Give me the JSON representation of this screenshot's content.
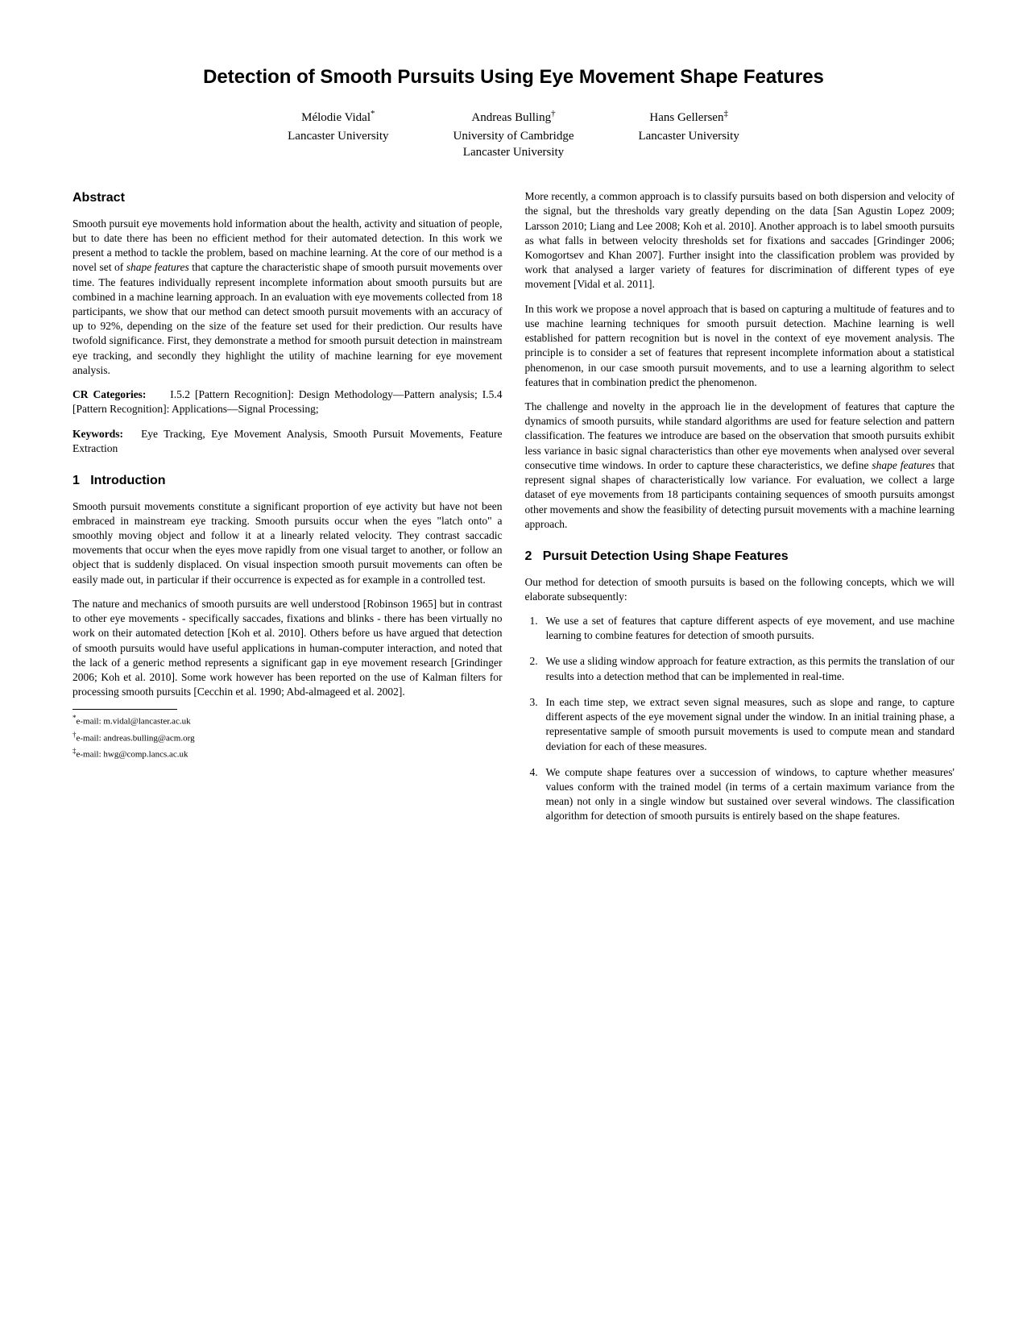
{
  "title": "Detection of Smooth Pursuits Using Eye Movement Shape Features",
  "authors": [
    {
      "name": "Mélodie Vidal",
      "marker": "*",
      "affil": "Lancaster University"
    },
    {
      "name": "Andreas Bulling",
      "marker": "†",
      "affil1": "University of Cambridge",
      "affil2": "Lancaster University"
    },
    {
      "name": "Hans Gellersen",
      "marker": "‡",
      "affil": "Lancaster University"
    }
  ],
  "abstract_heading": "Abstract",
  "abstract_p1": "Smooth pursuit eye movements hold information about the health, activity and situation of people, but to date there has been no efficient method for their automated detection. In this work we present a method to tackle the problem, based on machine learning. At the core of our method is a novel set of ",
  "abstract_p1_italic": "shape features",
  "abstract_p1_cont": " that capture the characteristic shape of smooth pursuit movements over time. The features individually represent incomplete information about smooth pursuits but are combined in a machine learning approach. In an evaluation with eye movements collected from 18 participants, we show that our method can detect smooth pursuit movements with an accuracy of up to 92%, depending on the size of the feature set used for their prediction. Our results have twofold significance. First, they demonstrate a method for smooth pursuit detection in mainstream eye tracking, and secondly they highlight the utility of machine learning for eye movement analysis.",
  "cr_label": "CR Categories:",
  "cr_spacing": "     ",
  "cr_text": "I.5.2 [Pattern Recognition]: Design Methodology—Pattern analysis; I.5.4 [Pattern Recognition]: Applications—Signal Processing;",
  "kw_label": "Keywords:",
  "kw_space": "   ",
  "kw_text": "Eye Tracking, Eye Movement Analysis, Smooth Pursuit Movements, Feature Extraction",
  "section1_heading": "1   Introduction",
  "s1_p1": "Smooth pursuit movements constitute a significant proportion of eye activity but have not been embraced in mainstream eye tracking. Smooth pursuits occur when the eyes \"latch onto\" a smoothly moving object and follow it at a linearly related velocity. They contrast saccadic movements that occur when the eyes move rapidly from one visual target to another, or follow an object that is suddenly displaced. On visual inspection smooth pursuit movements can often be easily made out, in particular if their occurrence is expected as for example in a controlled test.",
  "s1_p2": "The nature and mechanics of smooth pursuits are well understood [Robinson 1965] but in contrast to other eye movements - specifically saccades, fixations and blinks - there has been virtually no work on their automated detection [Koh et al. 2010]. Others before us have argued that detection of smooth pursuits would have useful applications in human-computer interaction, and noted that the lack of a generic method represents a significant gap in eye movement research [Grindinger 2006; Koh et al. 2010]. Some work however has been reported on the use of Kalman filters for processing smooth pursuits [Cecchin et al. 1990; Abd-almageed et al. 2002].",
  "footnotes": {
    "star": "e-mail: m.vidal@lancaster.ac.uk",
    "dagger": "e-mail: andreas.bulling@acm.org",
    "ddagger": "e-mail: hwg@comp.lancs.ac.uk"
  },
  "col2_p1": "More recently, a common approach is to classify pursuits based on both dispersion and velocity of the signal, but the thresholds vary greatly depending on the data [San Agustin Lopez 2009; Larsson 2010; Liang and Lee 2008; Koh et al. 2010]. Another approach is to label smooth pursuits as what falls in between velocity thresholds set for fixations and saccades [Grindinger 2006; Komogortsev and Khan 2007]. Further insight into the classification problem was provided by work that analysed a larger variety of features for discrimination of different types of eye movement [Vidal et al. 2011].",
  "col2_p2": "In this work we propose a novel approach that is based on capturing a multitude of features and to use machine learning techniques for smooth pursuit detection. Machine learning is well established for pattern recognition but is novel in the context of eye movement analysis. The principle is to consider a set of features that represent incomplete information about a statistical phenomenon, in our case smooth pursuit movements, and to use a learning algorithm to select features that in combination predict the phenomenon.",
  "col2_p3_a": "The challenge and novelty in the approach lie in the development of features that capture the dynamics of smooth pursuits, while standard algorithms are used for feature selection and pattern classification. The features we introduce are based on the observation that smooth pursuits exhibit less variance in basic signal characteristics than other eye movements when analysed over several consecutive time windows. In order to capture these characteristics, we define ",
  "col2_p3_italic": "shape features",
  "col2_p3_b": " that represent signal shapes of characteristically low variance. For evaluation, we collect a large dataset of eye movements from 18 participants containing sequences of smooth pursuits amongst other movements and show the feasibility of detecting pursuit movements with a machine learning approach.",
  "section2_heading": "2   Pursuit Detection Using Shape Features",
  "s2_intro": "Our method for detection of smooth pursuits is based on the following concepts, which we will elaborate subsequently:",
  "s2_items": [
    "We use a set of features that capture different aspects of eye movement, and use machine learning to combine features for detection of smooth pursuits.",
    "We use a sliding window approach for feature extraction, as this permits the translation of our results into a detection method that can be implemented in real-time.",
    "In each time step, we extract seven signal measures, such as slope and range, to capture different aspects of the eye movement signal under the window. In an initial training phase, a representative sample of smooth pursuit movements is used to compute mean and standard deviation for each of these measures.",
    "We compute shape features over a succession of windows, to capture whether measures' values conform with the trained model (in terms of a certain maximum variance from the mean) not only in a single window but sustained over several windows. The classification algorithm for detection of smooth pursuits is entirely based on the shape features."
  ]
}
